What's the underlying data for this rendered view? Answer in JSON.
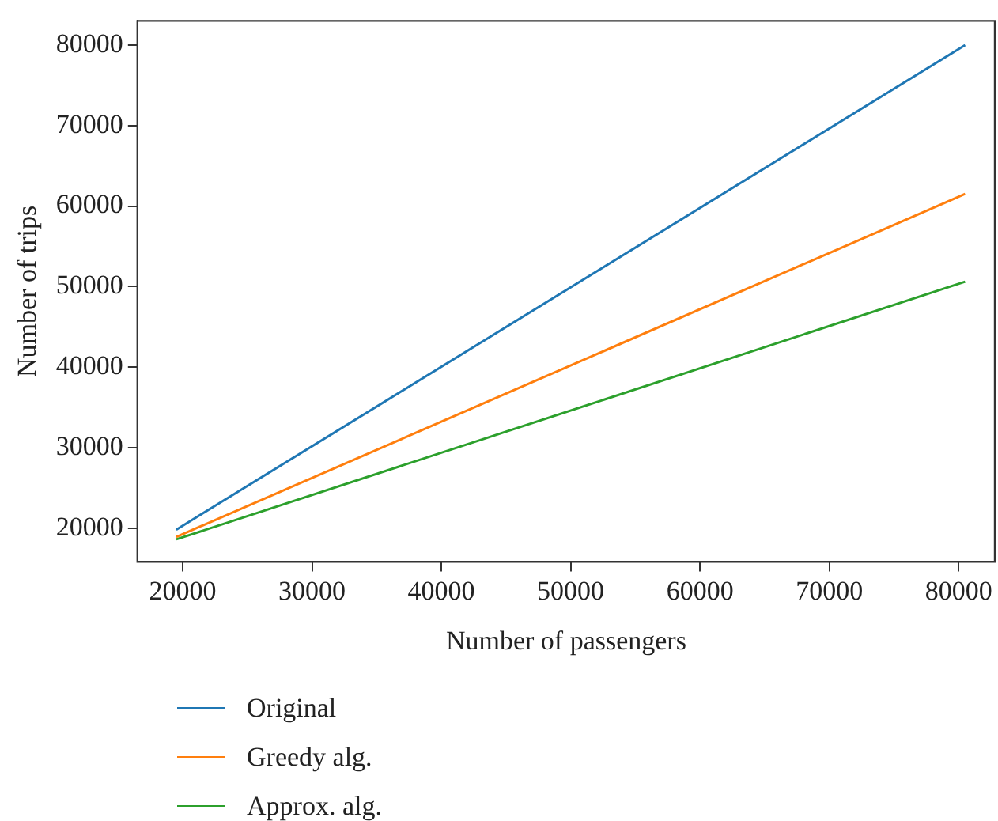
{
  "chart_data": {
    "type": "line",
    "xlabel": "Number of passengers",
    "ylabel": "Number of trips",
    "x": [
      19500,
      80500
    ],
    "series": [
      {
        "name": "Original",
        "color": "#1f77b4",
        "values": [
          19800,
          80000
        ]
      },
      {
        "name": "Greedy alg.",
        "color": "#ff7f0e",
        "values": [
          18900,
          61500
        ]
      },
      {
        "name": "Approx. alg.",
        "color": "#2ca02c",
        "values": [
          18600,
          50600
        ]
      }
    ],
    "xlim": [
      16500,
      82800
    ],
    "xticks": [
      20000,
      30000,
      40000,
      50000,
      60000,
      70000,
      80000
    ],
    "ylim": [
      15800,
      83000
    ],
    "yticks": [
      20000,
      30000,
      40000,
      50000,
      60000,
      70000,
      80000
    ],
    "grid": false,
    "legend": "bottom left",
    "marker": "none",
    "line_style": "solid"
  }
}
